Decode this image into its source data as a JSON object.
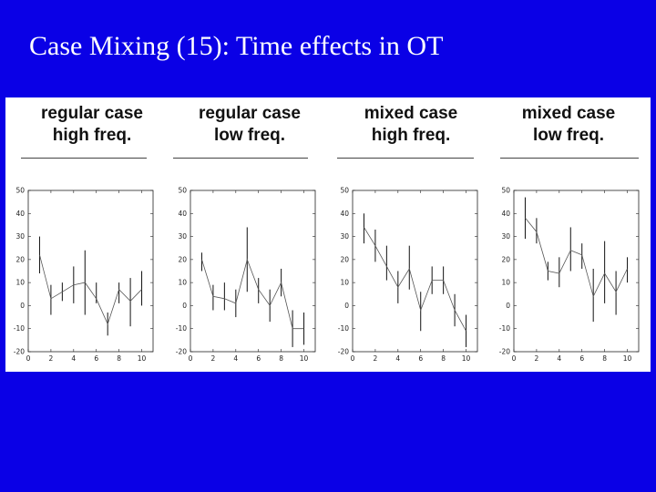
{
  "slide": {
    "title": "Case Mixing (15): Time effects in OT",
    "background_color": "#0a00e6",
    "title_color": "#ffffff"
  },
  "chart_data": [
    {
      "type": "line",
      "title_lines": [
        "regular case",
        "high freq."
      ],
      "x": [
        1,
        2,
        3,
        4,
        5,
        6,
        7,
        8,
        9,
        10
      ],
      "values": [
        22,
        3,
        6,
        9,
        10,
        3,
        -8,
        7,
        2,
        7
      ],
      "error_low": [
        14,
        -4,
        2,
        1,
        -4,
        1,
        -13,
        1,
        -9,
        0
      ],
      "error_high": [
        30,
        9,
        10,
        17,
        24,
        10,
        -3,
        10,
        12,
        15
      ],
      "xlim": [
        0,
        11
      ],
      "ylim": [
        -20,
        50
      ],
      "xticks": [
        0,
        2,
        4,
        6,
        8,
        10
      ],
      "yticks": [
        -20,
        -10,
        0,
        10,
        20,
        30,
        40,
        50
      ],
      "grid": false
    },
    {
      "type": "line",
      "title_lines": [
        "regular case",
        "low freq."
      ],
      "x": [
        1,
        2,
        3,
        4,
        5,
        6,
        7,
        8,
        9,
        10
      ],
      "values": [
        20,
        4,
        3,
        1,
        20,
        7,
        0,
        10,
        -10,
        -10
      ],
      "error_low": [
        15,
        -2,
        -2,
        -5,
        6,
        1,
        -7,
        4,
        -18,
        -17
      ],
      "error_high": [
        23,
        9,
        10,
        7,
        34,
        12,
        7,
        16,
        -2,
        -3
      ],
      "xlim": [
        0,
        11
      ],
      "ylim": [
        -20,
        50
      ],
      "xticks": [
        0,
        2,
        4,
        6,
        8,
        10
      ],
      "yticks": [
        -20,
        -10,
        0,
        10,
        20,
        30,
        40,
        50
      ],
      "grid": false
    },
    {
      "type": "line",
      "title_lines": [
        "mixed case",
        "high freq."
      ],
      "x": [
        1,
        2,
        3,
        4,
        5,
        6,
        7,
        8,
        9,
        10
      ],
      "values": [
        34,
        26,
        17,
        8,
        16,
        -2,
        11,
        11,
        -2,
        -11
      ],
      "error_low": [
        27,
        19,
        11,
        1,
        7,
        -11,
        5,
        5,
        -9,
        -18
      ],
      "error_high": [
        40,
        33,
        26,
        15,
        26,
        6,
        17,
        17,
        5,
        -4
      ],
      "xlim": [
        0,
        11
      ],
      "ylim": [
        -20,
        50
      ],
      "xticks": [
        0,
        2,
        4,
        6,
        8,
        10
      ],
      "yticks": [
        -20,
        -10,
        0,
        10,
        20,
        30,
        40,
        50
      ],
      "grid": false
    },
    {
      "type": "line",
      "title_lines": [
        "mixed case",
        "low freq."
      ],
      "x": [
        1,
        2,
        3,
        4,
        5,
        6,
        7,
        8,
        9,
        10
      ],
      "values": [
        38,
        32,
        15,
        14,
        24,
        22,
        4,
        14,
        6,
        16
      ],
      "error_low": [
        29,
        27,
        11,
        8,
        15,
        16,
        -7,
        1,
        -4,
        10
      ],
      "error_high": [
        47,
        38,
        19,
        21,
        34,
        27,
        16,
        28,
        15,
        21
      ],
      "xlim": [
        0,
        11
      ],
      "ylim": [
        -20,
        50
      ],
      "xticks": [
        0,
        2,
        4,
        6,
        8,
        10
      ],
      "yticks": [
        -20,
        -10,
        0,
        10,
        20,
        30,
        40,
        50
      ],
      "grid": false
    }
  ]
}
